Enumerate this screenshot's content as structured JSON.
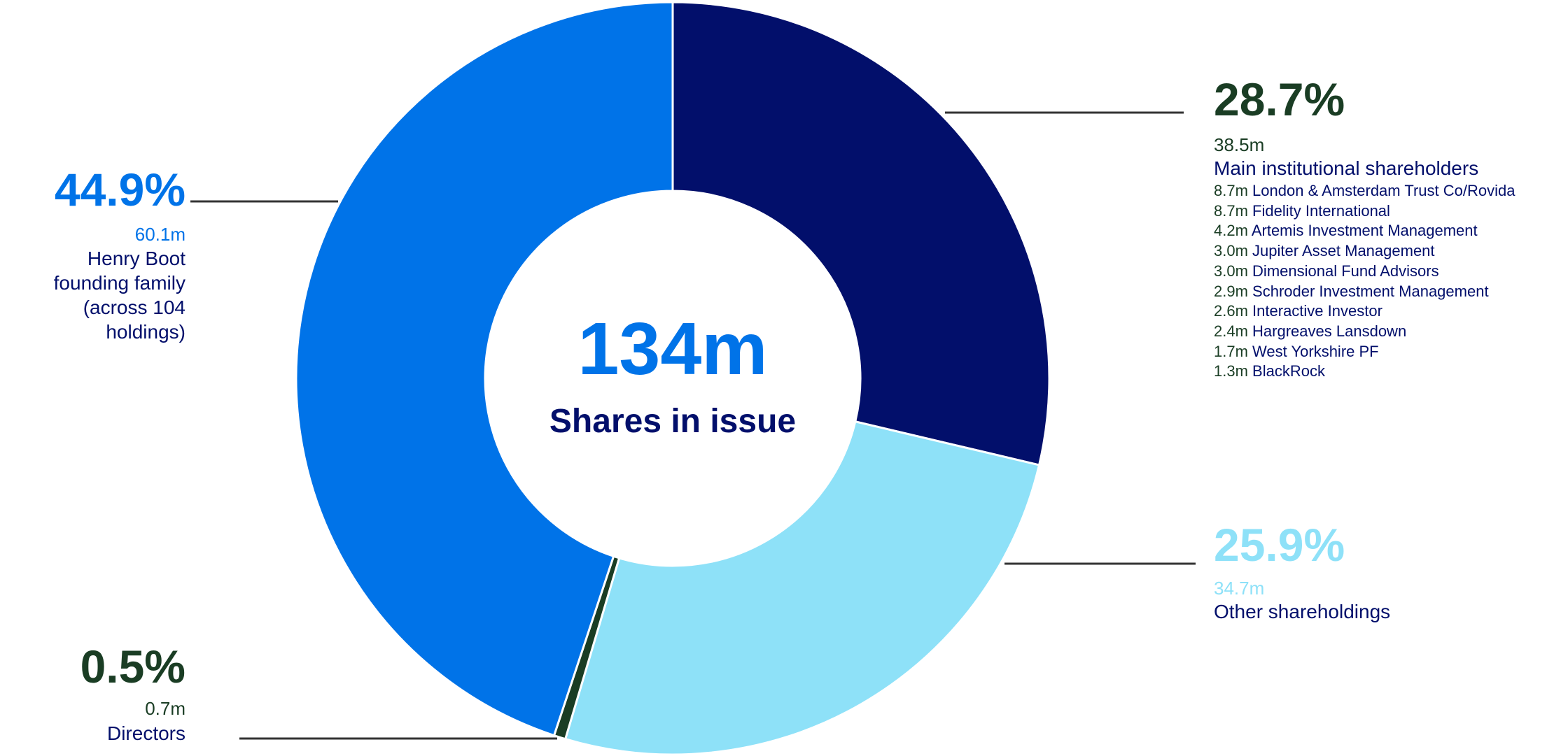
{
  "chart_data": {
    "type": "donut",
    "center_value": "134m",
    "center_label": "Shares in issue",
    "categories": [
      "Main institutional shareholders",
      "Other shareholdings",
      "Directors",
      "Henry Boot\nfounding family\n(across 104 holdings)"
    ],
    "values": [
      28.7,
      25.9,
      0.5,
      44.9
    ],
    "value_labels": [
      "28.7%",
      "25.9%",
      "0.5%",
      "44.9%"
    ],
    "amounts": [
      "38.5m",
      "34.7m",
      "0.7m",
      "60.1m"
    ],
    "colors": [
      "#020f6b",
      "#8ee1f8",
      "#1a3d24",
      "#0073e8"
    ],
    "label_colors": [
      "#1a3d24",
      "#8ee1f8",
      "#1a3d24",
      "#0073e8"
    ],
    "holders": [
      {
        "amount": "8.7m",
        "name": "London & Amsterdam Trust Co/Rovida"
      },
      {
        "amount": "8.7m",
        "name": "Fidelity International"
      },
      {
        "amount": "4.2m",
        "name": "Artemis Investment Management"
      },
      {
        "amount": "3.0m",
        "name": "Jupiter Asset Management"
      },
      {
        "amount": "3.0m",
        "name": "Dimensional Fund Advisors"
      },
      {
        "amount": "2.9m",
        "name": "Schroder Investment Management"
      },
      {
        "amount": "2.6m",
        "name": "Interactive Investor"
      },
      {
        "amount": "2.4m",
        "name": "Hargreaves Lansdown"
      },
      {
        "amount": "1.7m",
        "name": "West Yorkshire PF"
      },
      {
        "amount": "1.3m",
        "name": "BlackRock"
      }
    ]
  }
}
